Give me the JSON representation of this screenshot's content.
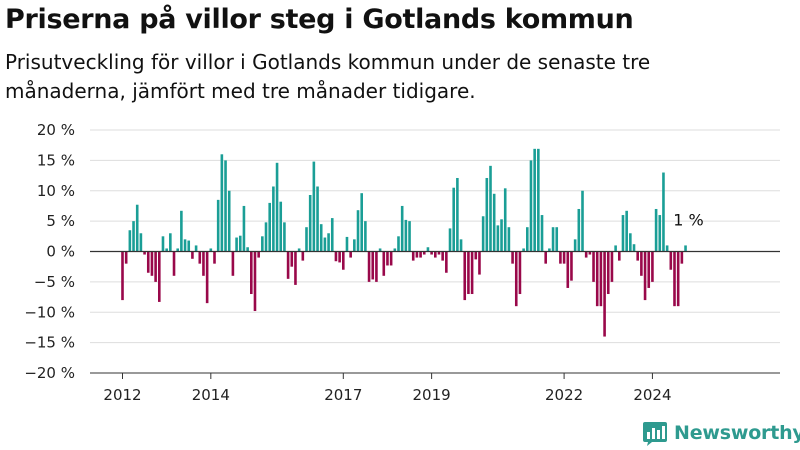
{
  "header": {
    "title": "Priserna på villor steg i Gotlands kommun",
    "subtitle": "Prisutveckling för villor i Gotlands kommun under de senaste tre månaderna, jämfört med tre månader tidigare."
  },
  "brand": {
    "name": "Newsworthy",
    "logo_icon": "bar-chart-logo-icon",
    "color": "#2e9a8f"
  },
  "colors": {
    "positive": "#1a9e96",
    "negative": "#99084a",
    "zero_line": "#333333",
    "grid": "#dddddd"
  },
  "chart_data": {
    "type": "bar",
    "title": "Priserna på villor steg i Gotlands kommun",
    "subtitle": "Prisutveckling för villor i Gotlands kommun under de senaste tre månaderna, jämfört med tre månader tidigare.",
    "xlabel": "",
    "ylabel": "",
    "ylim": [
      -20,
      20
    ],
    "y_ticks": [
      20,
      15,
      10,
      5,
      0,
      -5,
      -10,
      -15,
      -20
    ],
    "y_tick_labels": [
      "20 %",
      "15 %",
      "10 %",
      "5 %",
      "0 %",
      "−5 %",
      "−10 %",
      "−15 %",
      "−20 %"
    ],
    "x_tick_labels": [
      "2012",
      "2014",
      "2017",
      "2019",
      "2022",
      "2024"
    ],
    "x_tick_dates": [
      "2012-01",
      "2014-01",
      "2017-01",
      "2019-01",
      "2022-01",
      "2024-01"
    ],
    "grid": true,
    "annotation": {
      "label": "1 %",
      "date": "2024-11",
      "value": 1
    },
    "start": "2012-01",
    "values": [
      -8,
      -2,
      3.5,
      5,
      7.7,
      3,
      -0.5,
      -3.5,
      -4,
      -5,
      -8.3,
      2.5,
      0.5,
      3,
      -4,
      0.5,
      6.7,
      2,
      1.8,
      -1.2,
      1,
      -2,
      -4,
      -8.5,
      0.5,
      -2,
      8.5,
      16,
      15,
      10,
      -4,
      2.3,
      2.6,
      7.5,
      0.7,
      -7,
      -9.8,
      -1,
      2.5,
      4.8,
      8,
      10.7,
      14.6,
      8.2,
      4.8,
      -4.5,
      -2.5,
      -5.5,
      0.5,
      -1.5,
      4,
      9.3,
      14.8,
      10.7,
      4.5,
      2.3,
      3,
      5.5,
      -1.6,
      -1.8,
      -3,
      2.4,
      -1,
      2,
      6.8,
      9.6,
      5,
      -5,
      -4.6,
      -5,
      0.5,
      -4,
      -2.3,
      -2.3,
      0.5,
      2.5,
      7.5,
      5.2,
      5,
      -1.5,
      -1,
      -1,
      -0.5,
      0.7,
      -0.5,
      -1,
      -0.5,
      -1.5,
      -3.5,
      3.8,
      10.5,
      12.1,
      2,
      -8,
      -7,
      -7,
      -1.3,
      -3.8,
      5.8,
      12.1,
      14.1,
      9.5,
      4.3,
      5.3,
      10.4,
      4,
      -2,
      -9,
      -7,
      0.5,
      4,
      15,
      16.9,
      16.9,
      6,
      -2,
      0.5,
      4,
      4,
      -2,
      -2,
      -6,
      -4.8,
      2,
      7,
      10,
      -1,
      -0.5,
      -5,
      -9,
      -9,
      -14,
      -7,
      -5,
      1,
      -1.5,
      6,
      6.7,
      3,
      1.2,
      -1.5,
      -4,
      -8,
      -6,
      -5,
      7,
      6,
      13,
      1,
      -3,
      -9,
      -9,
      -2,
      1
    ]
  }
}
